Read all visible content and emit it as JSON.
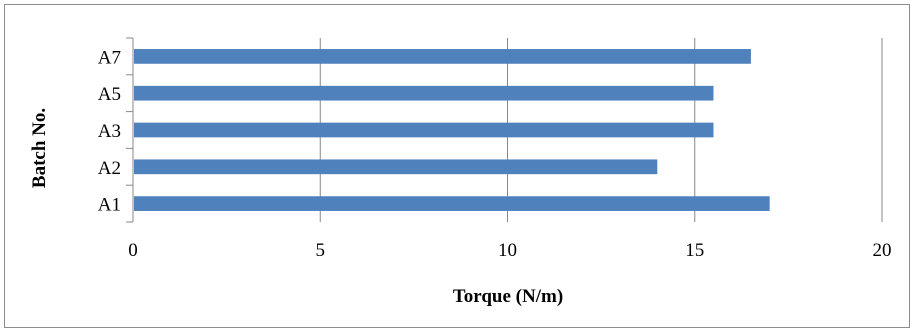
{
  "chart_data": {
    "type": "bar",
    "orientation": "horizontal",
    "categories": [
      "A1",
      "A2",
      "A3",
      "A5",
      "A7"
    ],
    "values": [
      17,
      14,
      15.5,
      15.5,
      16.5
    ],
    "xlabel": "Torque (N/m)",
    "ylabel": "Batch No.",
    "xlim": [
      0,
      20
    ],
    "xticks": [
      "0",
      "5",
      "10",
      "15",
      "20"
    ],
    "grid": "vertical",
    "legend": "none",
    "colors": {
      "bar": "#4f81bd",
      "grid": "#878787",
      "axis": "#878787",
      "frame": "#8c8c8c"
    }
  }
}
